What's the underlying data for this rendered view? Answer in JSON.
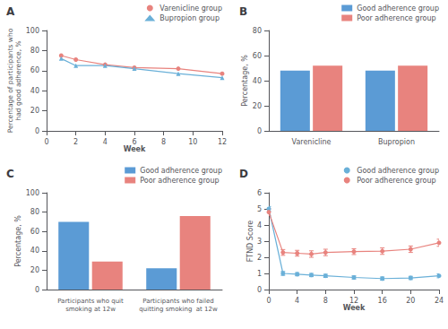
{
  "chart_data": [
    {
      "type": "line",
      "title": "A",
      "x": [
        1,
        2,
        4,
        6,
        9,
        12
      ],
      "series": [
        {
          "name": "Varenicline group",
          "color": "#e8837e",
          "marker": "circle",
          "values": [
            75,
            71,
            66,
            63,
            62,
            57
          ]
        },
        {
          "name": "Bupropion group",
          "color": "#6ab0d8",
          "marker": "triangle",
          "values": [
            72,
            65,
            65,
            62,
            57,
            53
          ]
        }
      ],
      "xlabel": "Week",
      "ylabel": "Percentage of participants who\nhad good adherence, %",
      "xlim": [
        0,
        12
      ],
      "xticks": [
        0,
        2,
        4,
        6,
        8,
        10,
        12
      ],
      "ylim": [
        0,
        100
      ],
      "yticks": [
        0,
        20,
        40,
        60,
        80,
        100
      ],
      "grid": false,
      "legend": "upper right"
    },
    {
      "type": "bar",
      "title": "B",
      "categories": [
        "Varenicline",
        "Bupropion"
      ],
      "series": [
        {
          "name": "Good adherence group",
          "color": "#5b9bd5",
          "values": [
            48,
            48
          ]
        },
        {
          "name": "Poor adherence group",
          "color": "#e8837e",
          "values": [
            52,
            52
          ]
        }
      ],
      "ylabel": "Percentage, %",
      "ylim": [
        0,
        80
      ],
      "yticks": [
        0,
        20,
        40,
        60,
        80
      ],
      "grid": false,
      "legend": "upper right"
    },
    {
      "type": "bar",
      "title": "C",
      "categories": [
        "Participants who quit\nsmoking at 12w",
        "Participants who failed\nquitting smoking  at 12w"
      ],
      "series": [
        {
          "name": "Good adherence group",
          "color": "#5b9bd5",
          "values": [
            70,
            22
          ]
        },
        {
          "name": "Poor adherence group",
          "color": "#e8837e",
          "values": [
            29,
            76
          ]
        }
      ],
      "ylabel": "Percentage, %",
      "ylim": [
        0,
        100
      ],
      "yticks": [
        0,
        20,
        40,
        60,
        80,
        100
      ],
      "grid": false,
      "legend": "upper right"
    },
    {
      "type": "line",
      "title": "D",
      "x": [
        0,
        2,
        4,
        6,
        8,
        12,
        16,
        20,
        24
      ],
      "series": [
        {
          "name": "Good adherence group",
          "color": "#6ab0d8",
          "marker": "circle",
          "values": [
            5.0,
            1.0,
            0.95,
            0.9,
            0.85,
            0.75,
            0.68,
            0.72,
            0.85
          ],
          "errors": [
            0.15,
            0.12,
            0.1,
            0.1,
            0.1,
            0.1,
            0.1,
            0.1,
            0.12
          ]
        },
        {
          "name": "Poor adherence group",
          "color": "#e8837e",
          "marker": "circle",
          "values": [
            4.8,
            2.3,
            2.25,
            2.2,
            2.3,
            2.35,
            2.38,
            2.5,
            2.9
          ],
          "errors": [
            0.2,
            0.18,
            0.18,
            0.2,
            0.2,
            0.18,
            0.2,
            0.2,
            0.22
          ]
        }
      ],
      "xlabel": "Week",
      "ylabel": "FTND Score",
      "xlim": [
        0,
        24
      ],
      "xticks": [
        0,
        4,
        8,
        12,
        16,
        20,
        24
      ],
      "ylim": [
        0,
        6
      ],
      "yticks": [
        0,
        1,
        2,
        3,
        4,
        5,
        6
      ],
      "grid": false,
      "legend": "upper right"
    }
  ]
}
